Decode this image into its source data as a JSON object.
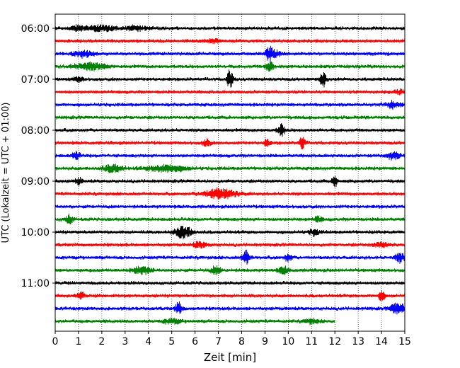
{
  "chart_data": {
    "type": "line",
    "title": "",
    "xlabel": "Zeit  [min]",
    "ylabel": "UTC (Lokalzeit = UTC + 01:00)",
    "xlim": [
      0,
      15
    ],
    "x_ticks": [
      0,
      1,
      2,
      3,
      4,
      5,
      6,
      7,
      8,
      9,
      10,
      11,
      12,
      13,
      14,
      15
    ],
    "grid": "vertical dotted",
    "y_ticks": [
      {
        "label": "06:00",
        "row": 0
      },
      {
        "label": "07:00",
        "row": 4
      },
      {
        "label": "08:00",
        "row": 8
      },
      {
        "label": "09:00",
        "row": 12
      },
      {
        "label": "10:00",
        "row": 16
      },
      {
        "label": "11:00",
        "row": 20
      }
    ],
    "trace_colors": [
      "#000000",
      "#ff0000",
      "#0000ff",
      "#008000"
    ],
    "trace_minutes": 15,
    "traces": [
      {
        "start": "06:00",
        "end_min": 15,
        "color": "#000000",
        "events": [
          {
            "t": 1.0,
            "a": 0.22,
            "w": 0.3
          },
          {
            "t": 2.0,
            "a": 0.25,
            "w": 0.6
          },
          {
            "t": 3.5,
            "a": 0.2,
            "w": 0.5
          }
        ]
      },
      {
        "start": "06:15",
        "end_min": 15,
        "color": "#ff0000",
        "events": [
          {
            "t": 6.7,
            "a": 0.18,
            "w": 0.3
          }
        ]
      },
      {
        "start": "06:30",
        "end_min": 15,
        "color": "#0000ff",
        "events": [
          {
            "t": 1.2,
            "a": 0.3,
            "w": 0.4
          },
          {
            "t": 9.2,
            "a": 0.7,
            "w": 0.15
          },
          {
            "t": 9.5,
            "a": 0.25,
            "w": 0.2
          }
        ]
      },
      {
        "start": "06:45",
        "end_min": 15,
        "color": "#008000",
        "events": [
          {
            "t": 1.5,
            "a": 0.3,
            "w": 0.7
          },
          {
            "t": 9.2,
            "a": 0.6,
            "w": 0.15
          }
        ]
      },
      {
        "start": "07:00",
        "end_min": 15,
        "color": "#000000",
        "events": [
          {
            "t": 7.5,
            "a": 1.0,
            "w": 0.12
          },
          {
            "t": 11.5,
            "a": 0.8,
            "w": 0.12
          },
          {
            "t": 1.0,
            "a": 0.2,
            "w": 0.2
          }
        ]
      },
      {
        "start": "07:15",
        "end_min": 15,
        "color": "#ff0000",
        "events": [
          {
            "t": 14.8,
            "a": 0.2,
            "w": 0.2
          }
        ]
      },
      {
        "start": "07:30",
        "end_min": 15,
        "color": "#0000ff",
        "events": [
          {
            "t": 14.5,
            "a": 0.3,
            "w": 0.3
          }
        ]
      },
      {
        "start": "07:45",
        "end_min": 15,
        "color": "#008000",
        "events": []
      },
      {
        "start": "08:00",
        "end_min": 15,
        "color": "#000000",
        "events": [
          {
            "t": 9.7,
            "a": 0.6,
            "w": 0.15
          }
        ]
      },
      {
        "start": "08:15",
        "end_min": 15,
        "color": "#ff0000",
        "events": [
          {
            "t": 6.5,
            "a": 0.35,
            "w": 0.15
          },
          {
            "t": 9.1,
            "a": 0.4,
            "w": 0.12
          },
          {
            "t": 10.6,
            "a": 0.55,
            "w": 0.12
          }
        ]
      },
      {
        "start": "08:30",
        "end_min": 15,
        "color": "#0000ff",
        "events": [
          {
            "t": 0.9,
            "a": 0.4,
            "w": 0.15
          },
          {
            "t": 14.5,
            "a": 0.3,
            "w": 0.3
          }
        ]
      },
      {
        "start": "08:45",
        "end_min": 15,
        "color": "#008000",
        "events": [
          {
            "t": 2.5,
            "a": 0.35,
            "w": 0.4
          },
          {
            "t": 4.8,
            "a": 0.3,
            "w": 0.8
          }
        ]
      },
      {
        "start": "09:00",
        "end_min": 15,
        "color": "#000000",
        "events": [
          {
            "t": 1.0,
            "a": 0.3,
            "w": 0.15
          },
          {
            "t": 12.0,
            "a": 0.55,
            "w": 0.1
          }
        ]
      },
      {
        "start": "09:15",
        "end_min": 15,
        "color": "#ff0000",
        "events": [
          {
            "t": 7.1,
            "a": 0.45,
            "w": 0.7
          }
        ]
      },
      {
        "start": "09:30",
        "end_min": 15,
        "color": "#0000ff",
        "events": []
      },
      {
        "start": "09:45",
        "end_min": 15,
        "color": "#008000",
        "events": [
          {
            "t": 0.6,
            "a": 0.4,
            "w": 0.15
          },
          {
            "t": 11.3,
            "a": 0.3,
            "w": 0.15
          }
        ]
      },
      {
        "start": "10:00",
        "end_min": 15,
        "color": "#000000",
        "events": [
          {
            "t": 5.5,
            "a": 0.6,
            "w": 0.35
          },
          {
            "t": 11.1,
            "a": 0.3,
            "w": 0.2
          }
        ]
      },
      {
        "start": "10:15",
        "end_min": 15,
        "color": "#ff0000",
        "events": [
          {
            "t": 6.2,
            "a": 0.25,
            "w": 0.3
          },
          {
            "t": 14.0,
            "a": 0.25,
            "w": 0.3
          }
        ]
      },
      {
        "start": "10:30",
        "end_min": 15,
        "color": "#0000ff",
        "events": [
          {
            "t": 8.2,
            "a": 0.7,
            "w": 0.15
          },
          {
            "t": 10.0,
            "a": 0.35,
            "w": 0.15
          },
          {
            "t": 14.8,
            "a": 0.4,
            "w": 0.2
          }
        ]
      },
      {
        "start": "10:45",
        "end_min": 15,
        "color": "#008000",
        "events": [
          {
            "t": 3.7,
            "a": 0.35,
            "w": 0.4
          },
          {
            "t": 6.9,
            "a": 0.4,
            "w": 0.2
          },
          {
            "t": 9.8,
            "a": 0.35,
            "w": 0.2
          }
        ]
      },
      {
        "start": "11:00",
        "end_min": 15,
        "color": "#000000",
        "events": []
      },
      {
        "start": "11:15",
        "end_min": 15,
        "color": "#ff0000",
        "events": [
          {
            "t": 1.1,
            "a": 0.3,
            "w": 0.15
          },
          {
            "t": 14.0,
            "a": 0.5,
            "w": 0.12
          }
        ]
      },
      {
        "start": "11:30",
        "end_min": 15,
        "color": "#0000ff",
        "events": [
          {
            "t": 5.3,
            "a": 0.55,
            "w": 0.15
          },
          {
            "t": 14.7,
            "a": 0.5,
            "w": 0.3
          }
        ]
      },
      {
        "start": "11:45",
        "end_min": 12,
        "color": "#008000",
        "events": [
          {
            "t": 5.0,
            "a": 0.2,
            "w": 0.4
          },
          {
            "t": 11.0,
            "a": 0.2,
            "w": 0.3
          }
        ]
      }
    ]
  }
}
